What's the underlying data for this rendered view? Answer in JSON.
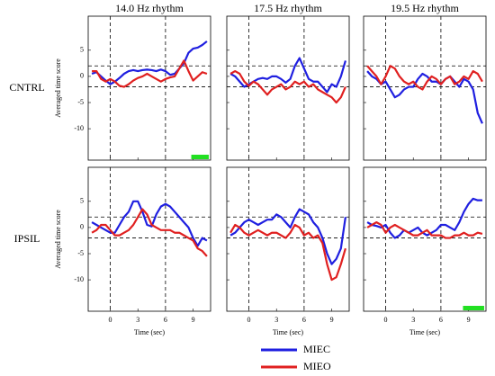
{
  "chart_data": [
    {
      "type": "line",
      "title": "14.0 Hz rhythm",
      "row_label": "CNTRL",
      "ylabel": "Averaged time score",
      "x": [
        -2,
        -1.5,
        -1,
        -0.5,
        0,
        0.5,
        1,
        1.5,
        2,
        2.5,
        3,
        3.5,
        4,
        4.5,
        5,
        5.5,
        6,
        6.5,
        7,
        7.5,
        8,
        8.5,
        9,
        9.5,
        10,
        10.5
      ],
      "series": [
        {
          "name": "MIEC",
          "color": "#1f1fe0",
          "values": [
            0.5,
            0.8,
            0,
            -0.8,
            -1.5,
            -1,
            -0.3,
            0.5,
            1,
            1.2,
            1,
            1.2,
            1.3,
            1.2,
            1,
            1.3,
            1,
            0.3,
            0.5,
            1.5,
            2.5,
            4.5,
            5.3,
            5.5,
            6,
            6.7
          ]
        },
        {
          "name": "MIEO",
          "color": "#e02020",
          "values": [
            1,
            1,
            -0.5,
            -1,
            -0.5,
            -1,
            -1.8,
            -2,
            -1.5,
            -0.8,
            -0.3,
            0,
            0.5,
            0,
            -0.5,
            -1,
            -0.5,
            -0.2,
            0,
            1.5,
            3,
            1,
            -0.8,
            0,
            0.8,
            0.5
          ]
        }
      ],
      "xlim": [
        -2.4,
        10.9
      ],
      "xticks": [
        0,
        3,
        6,
        9
      ],
      "ylim": [
        -16,
        11.5
      ],
      "yticks": [
        5,
        0,
        -5,
        -10
      ],
      "vlines": [
        0,
        6
      ],
      "hlines": [
        -2,
        2
      ],
      "highlight": [
        8.8,
        10.7
      ],
      "highlight_color": "#22e022"
    },
    {
      "type": "line",
      "title": "17.5 Hz rhythm",
      "x": [
        -2,
        -1.5,
        -1,
        -0.5,
        0,
        0.5,
        1,
        1.5,
        2,
        2.5,
        3,
        3.5,
        4,
        4.5,
        5,
        5.5,
        6,
        6.5,
        7,
        7.5,
        8,
        8.5,
        9,
        9.5,
        10,
        10.5
      ],
      "series": [
        {
          "name": "MIEC",
          "color": "#1f1fe0",
          "values": [
            0.5,
            0,
            -1,
            -2,
            -1.5,
            -1,
            -0.5,
            -0.3,
            -0.5,
            0,
            0,
            -0.5,
            -1.2,
            -0.5,
            2,
            3.5,
            1.5,
            -0.5,
            -1,
            -1,
            -2,
            -3,
            -1.5,
            -2,
            0,
            3
          ]
        },
        {
          "name": "MIEO",
          "color": "#e02020",
          "values": [
            0.5,
            1,
            0.5,
            -1,
            -1.8,
            -1,
            -1.5,
            -2.5,
            -3.5,
            -2.5,
            -2,
            -1.5,
            -2.5,
            -2,
            -1,
            -1.5,
            -1,
            -2,
            -1.5,
            -2.5,
            -3,
            -3.5,
            -4,
            -5,
            -4,
            -2
          ]
        }
      ],
      "xlim": [
        -2.4,
        10.9
      ],
      "xticks": [
        0,
        3,
        6,
        9
      ],
      "ylim": [
        -16,
        11.5
      ],
      "yticks": [
        5,
        0,
        -5,
        -10
      ],
      "vlines": [
        0,
        6
      ],
      "hlines": [
        -2,
        2
      ]
    },
    {
      "type": "line",
      "title": "19.5 Hz rhythm",
      "x": [
        -2,
        -1.5,
        -1,
        -0.5,
        0,
        0.5,
        1,
        1.5,
        2,
        2.5,
        3,
        3.5,
        4,
        4.5,
        5,
        5.5,
        6,
        6.5,
        7,
        7.5,
        8,
        8.5,
        9,
        9.5,
        10,
        10.5
      ],
      "series": [
        {
          "name": "MIEC",
          "color": "#1f1fe0",
          "values": [
            1,
            0,
            -0.5,
            -1.5,
            -1,
            -2.5,
            -4,
            -3.5,
            -2.5,
            -2,
            -2,
            -0.5,
            0.5,
            0,
            -1,
            -1,
            -1.5,
            -0.5,
            0,
            -1,
            -2,
            -0.5,
            -1,
            -2.5,
            -7,
            -9
          ]
        },
        {
          "name": "MIEO",
          "color": "#e02020",
          "values": [
            2,
            1,
            0,
            -1.5,
            0,
            2,
            1.5,
            0,
            -1,
            -1.5,
            -1,
            -2,
            -2.5,
            -1,
            0,
            -0.5,
            -1.5,
            -0.5,
            0,
            -1.5,
            -1,
            0,
            -0.5,
            1,
            0.5,
            -1
          ]
        }
      ],
      "xlim": [
        -2.4,
        10.9
      ],
      "xticks": [
        0,
        3,
        6,
        9
      ],
      "ylim": [
        -16,
        11.5
      ],
      "yticks": [
        5,
        0,
        -5,
        -10
      ],
      "vlines": [
        0,
        6
      ],
      "hlines": [
        -2,
        2
      ]
    },
    {
      "type": "line",
      "row_label": "IPSIL",
      "ylabel": "Averaged time score",
      "xlabel": "Time (sec)",
      "x": [
        -2,
        -1.5,
        -1,
        -0.5,
        0,
        0.5,
        1,
        1.5,
        2,
        2.5,
        3,
        3.5,
        4,
        4.5,
        5,
        5.5,
        6,
        6.5,
        7,
        7.5,
        8,
        8.5,
        9,
        9.5,
        10,
        10.5
      ],
      "series": [
        {
          "name": "MIEC",
          "color": "#1f1fe0",
          "values": [
            1,
            0.5,
            0,
            -0.5,
            -1,
            -1,
            0.5,
            2,
            3,
            5,
            5,
            3,
            0.5,
            0.2,
            2.5,
            4,
            4.5,
            4,
            3,
            2,
            1,
            0,
            -2,
            -3.5,
            -2,
            -2.5
          ]
        },
        {
          "name": "MIEO",
          "color": "#e02020",
          "values": [
            -1,
            -0.5,
            0.5,
            0.5,
            -0.5,
            -1.5,
            -1.5,
            -1,
            -0.5,
            0.5,
            2,
            3.5,
            2.5,
            0.5,
            0,
            -0.5,
            -0.5,
            -0.5,
            -1,
            -1,
            -1.5,
            -2,
            -2.5,
            -4,
            -4.5,
            -5.5
          ]
        }
      ],
      "xlim": [
        -2.4,
        10.9
      ],
      "xticks": [
        0,
        3,
        6,
        9
      ],
      "ylim": [
        -16,
        11.5
      ],
      "yticks": [
        5,
        0,
        -5,
        -10
      ],
      "vlines": [
        0,
        6
      ],
      "hlines": [
        -2,
        2
      ]
    },
    {
      "type": "line",
      "xlabel": "Time (sec)",
      "x": [
        -2,
        -1.5,
        -1,
        -0.5,
        0,
        0.5,
        1,
        1.5,
        2,
        2.5,
        3,
        3.5,
        4,
        4.5,
        5,
        5.5,
        6,
        6.5,
        7,
        7.5,
        8,
        8.5,
        9,
        9.5,
        10,
        10.5
      ],
      "series": [
        {
          "name": "MIEC",
          "color": "#1f1fe0",
          "values": [
            -1.5,
            -1,
            0,
            1,
            1.5,
            1,
            0.5,
            1,
            1.5,
            1.5,
            2.5,
            2,
            1,
            0,
            2,
            3.5,
            3,
            2.5,
            1,
            0,
            -2,
            -5,
            -7,
            -6,
            -4,
            2
          ]
        },
        {
          "name": "MIEO",
          "color": "#e02020",
          "values": [
            -1,
            0.5,
            0,
            -1,
            -1.5,
            -1,
            -0.5,
            -1,
            -1.5,
            -1,
            -1,
            -1.5,
            -2,
            -1,
            0.5,
            0,
            -1.5,
            -1,
            -2,
            -1.5,
            -3,
            -7,
            -10,
            -9.5,
            -7,
            -4
          ]
        }
      ],
      "xlim": [
        -2.4,
        10.9
      ],
      "xticks": [
        0,
        3,
        6,
        9
      ],
      "ylim": [
        -16,
        11.5
      ],
      "yticks": [
        5,
        0,
        -5,
        -10
      ],
      "vlines": [
        0,
        6
      ],
      "hlines": [
        -2,
        2
      ]
    },
    {
      "type": "line",
      "xlabel": "Time (sec)",
      "x": [
        -2,
        -1.5,
        -1,
        -0.5,
        0,
        0.5,
        1,
        1.5,
        2,
        2.5,
        3,
        3.5,
        4,
        4.5,
        5,
        5.5,
        6,
        6.5,
        7,
        7.5,
        8,
        8.5,
        9,
        9.5,
        10,
        10.5
      ],
      "series": [
        {
          "name": "MIEC",
          "color": "#1f1fe0",
          "values": [
            1,
            0.5,
            0.3,
            0,
            0.5,
            -1,
            -2,
            -1.5,
            -0.5,
            -1,
            -0.5,
            0,
            -1,
            -1.5,
            -1,
            -0.5,
            0.5,
            0.5,
            0,
            -0.5,
            1,
            3,
            4.5,
            5.5,
            5.2,
            5.2
          ]
        },
        {
          "name": "MIEO",
          "color": "#e02020",
          "values": [
            0,
            0.5,
            1,
            0.5,
            -1,
            0,
            0.5,
            0,
            -0.5,
            -1,
            -1.5,
            -1.5,
            -1,
            -0.5,
            -1.5,
            -1.5,
            -1.5,
            -2,
            -2,
            -1.5,
            -1.5,
            -1,
            -1.5,
            -1.5,
            -1,
            -1.2
          ]
        }
      ],
      "xlim": [
        -2.4,
        10.9
      ],
      "xticks": [
        0,
        3,
        6,
        9
      ],
      "ylim": [
        -16,
        11.5
      ],
      "yticks": [
        5,
        0,
        -5,
        -10
      ],
      "vlines": [
        0,
        6
      ],
      "hlines": [
        -2,
        2
      ],
      "highlight": [
        8.4,
        10.7
      ],
      "highlight_color": "#22e022"
    }
  ]
}
